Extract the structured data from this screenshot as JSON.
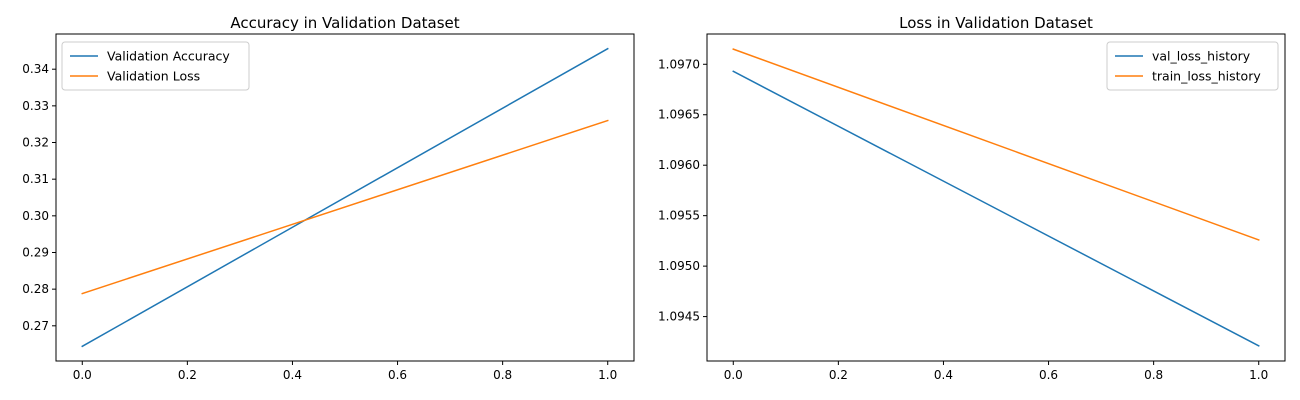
{
  "figure": {
    "background": "#ffffff"
  },
  "chart_data": [
    {
      "type": "line",
      "title": "Accuracy in Validation Dataset",
      "xlabel": "",
      "ylabel": "",
      "xlim": [
        -0.05,
        1.05
      ],
      "ylim": [
        0.2604,
        0.3496
      ],
      "xticks": [
        0.0,
        0.2,
        0.4,
        0.6,
        0.8,
        1.0
      ],
      "xtick_labels": [
        "0.0",
        "0.2",
        "0.4",
        "0.6",
        "0.8",
        "1.0"
      ],
      "yticks": [
        0.27,
        0.28,
        0.29,
        0.3,
        0.31,
        0.32,
        0.33,
        0.34
      ],
      "ytick_labels": [
        "0.27",
        "0.28",
        "0.29",
        "0.30",
        "0.31",
        "0.32",
        "0.33",
        "0.34"
      ],
      "grid": false,
      "legend_position": "top-left",
      "series": [
        {
          "name": "Validation Accuracy",
          "color": "#1f77b4",
          "x": [
            0,
            1
          ],
          "y": [
            0.2644,
            0.3456
          ]
        },
        {
          "name": "Validation Loss",
          "color": "#ff7f0e",
          "x": [
            0,
            1
          ],
          "y": [
            0.2788,
            0.326
          ]
        }
      ]
    },
    {
      "type": "line",
      "title": "Loss in Validation Dataset",
      "xlabel": "",
      "ylabel": "",
      "xlim": [
        -0.05,
        1.05
      ],
      "ylim": [
        1.09406,
        1.0973
      ],
      "xticks": [
        0.0,
        0.2,
        0.4,
        0.6,
        0.8,
        1.0
      ],
      "xtick_labels": [
        "0.0",
        "0.2",
        "0.4",
        "0.6",
        "0.8",
        "1.0"
      ],
      "yticks": [
        1.0945,
        1.095,
        1.0955,
        1.096,
        1.0965,
        1.097
      ],
      "ytick_labels": [
        "1.0945",
        "1.0950",
        "1.0955",
        "1.0960",
        "1.0965",
        "1.0970"
      ],
      "grid": false,
      "legend_position": "top-right",
      "series": [
        {
          "name": "val_loss_history",
          "color": "#1f77b4",
          "x": [
            0,
            1
          ],
          "y": [
            1.09693,
            1.09421
          ]
        },
        {
          "name": "train_loss_history",
          "color": "#ff7f0e",
          "x": [
            0,
            1
          ],
          "y": [
            1.09715,
            1.09526
          ]
        }
      ]
    }
  ]
}
